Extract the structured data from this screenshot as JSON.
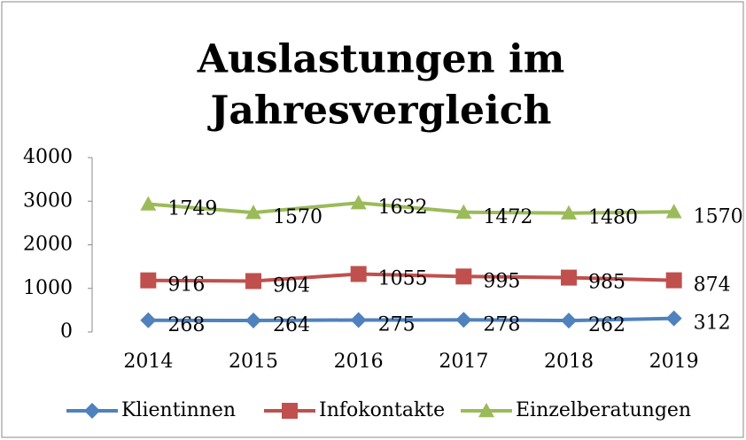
{
  "chart_data": {
    "type": "line",
    "stacked": true,
    "title": [
      "Auslastungen im",
      "Jahresvergleich"
    ],
    "categories": [
      "2014",
      "2015",
      "2016",
      "2017",
      "2018",
      "2019"
    ],
    "series": [
      {
        "name": "Klientinnen",
        "color": "#4f81bd",
        "marker": "diamond",
        "values": [
          268,
          264,
          275,
          278,
          262,
          312
        ]
      },
      {
        "name": "Infokontakte",
        "color": "#c0504d",
        "marker": "square",
        "values": [
          916,
          904,
          1055,
          995,
          985,
          874
        ]
      },
      {
        "name": "Einzelberatungen",
        "color": "#9bbb59",
        "marker": "triangle",
        "values": [
          1749,
          1570,
          1632,
          1472,
          1480,
          1570
        ]
      }
    ],
    "ylim": [
      0,
      4000
    ],
    "yticks": [
      0,
      1000,
      2000,
      3000,
      4000
    ],
    "grid": false,
    "legend": "bottom",
    "data_labels": true
  }
}
